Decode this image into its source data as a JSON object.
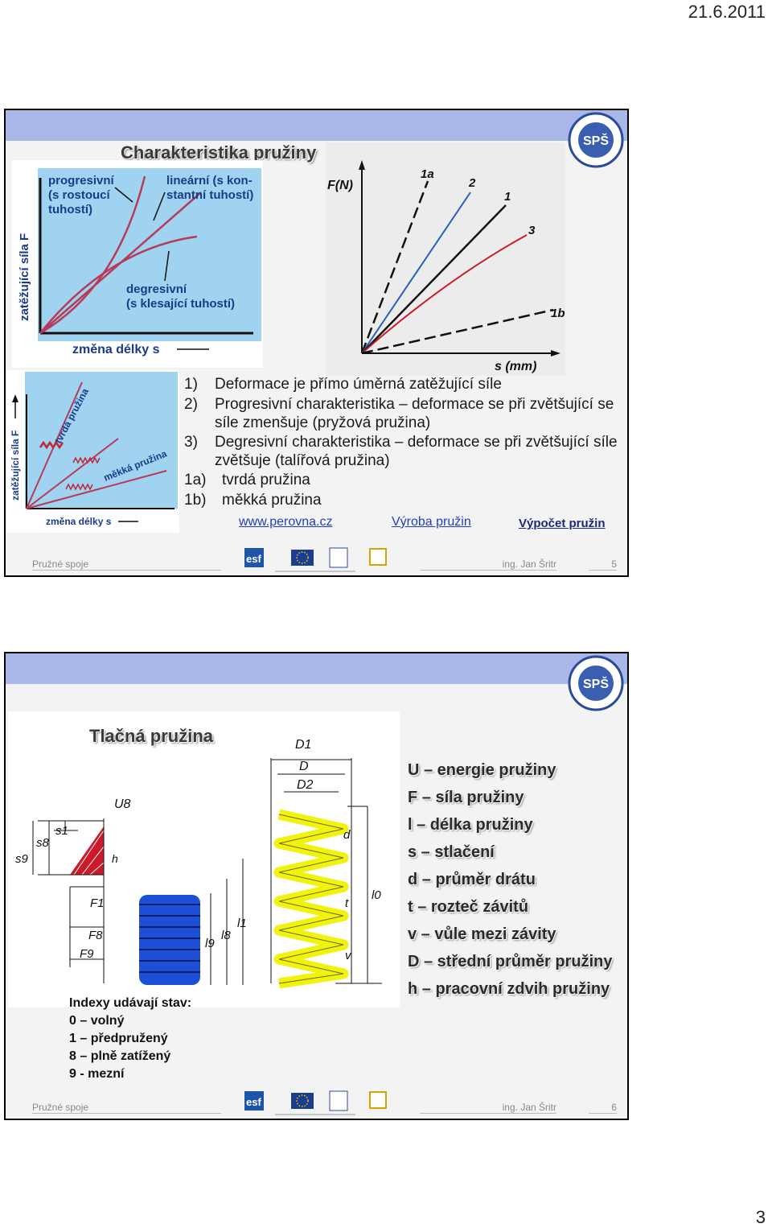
{
  "header": {
    "date": "21.6.2011"
  },
  "page_number": "3",
  "slide5": {
    "title": "Charakteristika pružiny",
    "chart_left": {
      "ylabel": "zatěžující síla F",
      "xlabel": "změna délky s",
      "label_progresivni": [
        "progresivní",
        "(s rostoucí",
        "tuhostí)"
      ],
      "label_linearni": [
        "lineární (s kon-",
        "stantní tuhostí)"
      ],
      "label_degresivni": [
        "degresivní",
        "(s klesající tuhostí)"
      ]
    },
    "chart_right": {
      "ylabel": "F(N)",
      "xlabel": "s (mm)",
      "series_labels": [
        "1a",
        "2",
        "1",
        "3",
        "1b"
      ]
    },
    "chart_small": {
      "ylabel": "zatěžující síla F",
      "xlabel": "změna délky s",
      "label_tvrda": "tvrdá pružina",
      "label_mekka": "měkká pružina"
    },
    "list": [
      {
        "num": "1)",
        "text": "Deformace je přímo úměrná zatěžující síle"
      },
      {
        "num": "2)",
        "text": "Progresivní charakteristika – deformace se při zvětšující se síle zmenšuje (pryžová pružina)"
      },
      {
        "num": "3)",
        "text": "Degresivní charakteristika – deformace se při zvětšující síle zvětšuje (talířová pružina)"
      },
      {
        "num": "1a)",
        "text": "tvrdá pružina"
      },
      {
        "num": "1b)",
        "text": "měkká pružina"
      }
    ],
    "links": {
      "perovna": "www.perovna.cz",
      "vyroba": "Výroba pružin",
      "vypocet": "Výpočet pružin"
    },
    "footer": {
      "left": "Pružné spoje",
      "author": "ing. Jan Šritr",
      "page": "5"
    }
  },
  "slide6": {
    "title": "Tlačná pružina",
    "diagram_labels": {
      "D1": "D1",
      "D": "D",
      "D2": "D2",
      "d": "d",
      "t": "t",
      "v": "v",
      "l0": "l0",
      "l1": "l1",
      "l8": "l8",
      "l9": "l9",
      "s9": "s9",
      "s8": "s8",
      "s1": "s1",
      "U8": "U8",
      "h": "h",
      "F1": "F1",
      "F8": "F8",
      "F9": "F9"
    },
    "definitions": [
      "U – energie pružiny",
      "F – síla pružiny",
      "l – délka pružiny",
      "s – stlačení",
      "d – průměr drátu",
      "t – rozteč závitů",
      "v – vůle mezi závity",
      "D – střední průměr pružiny",
      "h – pracovní zdvih pružiny"
    ],
    "indexy": [
      "Indexy udávají stav:",
      "0 – volný",
      "1 – předpružený",
      "8 – plně zatížený",
      "9 - mezní"
    ],
    "footer": {
      "left": "Pružné spoje",
      "author": "ing. Jan Šritr",
      "page": "6"
    }
  },
  "colors": {
    "topbar": "#a9b8e8",
    "link": "#1f3fbf",
    "chart_bg": "#9fd3ef",
    "spring_yellow": "#f2f20f",
    "spring_blue": "#1d4ed8",
    "triangle_red": "#cc1a2a"
  }
}
